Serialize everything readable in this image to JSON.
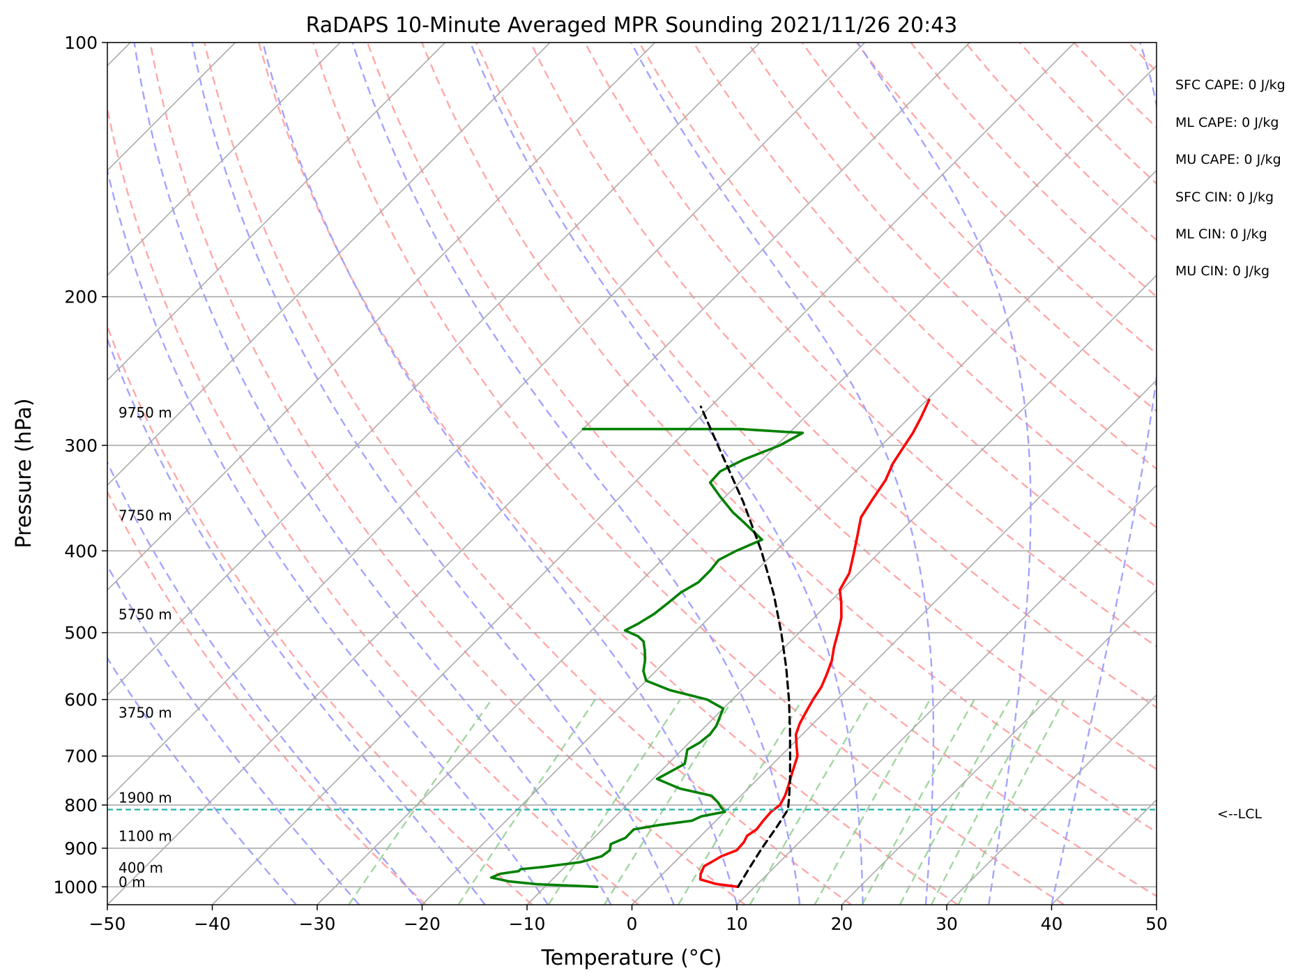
{
  "chart_data": {
    "type": "line",
    "subtype": "skew-t log-p",
    "title": "RaDAPS 10-Minute Averaged MPR Sounding 2021/11/26 20:43",
    "xlabel": "Temperature (°C)",
    "ylabel": "Pressure (hPa)",
    "xlim": [
      -50,
      50
    ],
    "ylim": [
      1050,
      100
    ],
    "yscale": "log",
    "x_ticks": [
      -50,
      -40,
      -30,
      -20,
      -10,
      0,
      10,
      20,
      30,
      40,
      50
    ],
    "x_tick_labels": [
      "−50",
      "−40",
      "−30",
      "−20",
      "−10",
      "0",
      "10",
      "20",
      "30",
      "40",
      "50"
    ],
    "y_ticks": [
      100,
      200,
      300,
      400,
      500,
      600,
      700,
      800,
      900,
      1000
    ],
    "y_tick_labels": [
      "100",
      "200",
      "300",
      "400",
      "500",
      "600",
      "700",
      "800",
      "900",
      "1000"
    ],
    "grid": true,
    "series": [
      {
        "role": "temperature",
        "color": "#ff0000",
        "points": [
          [
            1000,
            8.4
          ],
          [
            992,
            6.0
          ],
          [
            980,
            4.1
          ],
          [
            965,
            3.6
          ],
          [
            945,
            3.2
          ],
          [
            935,
            3.5
          ],
          [
            920,
            3.9
          ],
          [
            905,
            4.8
          ],
          [
            885,
            4.7
          ],
          [
            870,
            4.4
          ],
          [
            855,
            4.7
          ],
          [
            835,
            4.5
          ],
          [
            815,
            4.4
          ],
          [
            800,
            4.6
          ],
          [
            780,
            4.2
          ],
          [
            760,
            3.6
          ],
          [
            730,
            2.6
          ],
          [
            700,
            1.6
          ],
          [
            680,
            0.5
          ],
          [
            660,
            -0.6
          ],
          [
            640,
            -1.3
          ],
          [
            620,
            -1.8
          ],
          [
            600,
            -2.3
          ],
          [
            580,
            -2.7
          ],
          [
            560,
            -3.4
          ],
          [
            540,
            -4.2
          ],
          [
            520,
            -5.3
          ],
          [
            500,
            -6.3
          ],
          [
            480,
            -7.4
          ],
          [
            460,
            -8.9
          ],
          [
            445,
            -10.2
          ],
          [
            425,
            -10.9
          ],
          [
            405,
            -12.2
          ],
          [
            385,
            -13.6
          ],
          [
            365,
            -15.1
          ],
          [
            348,
            -15.7
          ],
          [
            330,
            -16.3
          ],
          [
            315,
            -17.2
          ],
          [
            300,
            -17.8
          ],
          [
            290,
            -18.2
          ],
          [
            278,
            -18.9
          ],
          [
            265,
            -19.8
          ]
        ]
      },
      {
        "role": "dewpoint",
        "color": "#008000",
        "points": [
          [
            1000,
            -5.0
          ],
          [
            993,
            -11.0
          ],
          [
            985,
            -14.0
          ],
          [
            975,
            -16.0
          ],
          [
            965,
            -15.5
          ],
          [
            958,
            -14.0
          ],
          [
            953,
            -14.0
          ],
          [
            947,
            -12.0
          ],
          [
            935,
            -9.0
          ],
          [
            920,
            -7.5
          ],
          [
            905,
            -7.3
          ],
          [
            890,
            -7.8
          ],
          [
            875,
            -7.0
          ],
          [
            865,
            -7.0
          ],
          [
            855,
            -7.0
          ],
          [
            845,
            -5.0
          ],
          [
            835,
            -2.3
          ],
          [
            825,
            -1.8
          ],
          [
            815,
            0.0
          ],
          [
            805,
            -0.8
          ],
          [
            795,
            -1.5
          ],
          [
            780,
            -2.8
          ],
          [
            765,
            -6.5
          ],
          [
            745,
            -9.6
          ],
          [
            730,
            -9.0
          ],
          [
            715,
            -8.4
          ],
          [
            700,
            -9.0
          ],
          [
            688,
            -9.5
          ],
          [
            675,
            -9.0
          ],
          [
            660,
            -8.8
          ],
          [
            645,
            -9.0
          ],
          [
            630,
            -9.5
          ],
          [
            615,
            -10.0
          ],
          [
            600,
            -12.4
          ],
          [
            585,
            -16.8
          ],
          [
            570,
            -20.0
          ],
          [
            555,
            -21.2
          ],
          [
            540,
            -22.0
          ],
          [
            525,
            -23.0
          ],
          [
            512,
            -24.0
          ],
          [
            505,
            -25.0
          ],
          [
            497,
            -26.8
          ],
          [
            488,
            -26.2
          ],
          [
            475,
            -25.6
          ],
          [
            460,
            -25.3
          ],
          [
            448,
            -25.1
          ],
          [
            436,
            -24.4
          ],
          [
            422,
            -24.4
          ],
          [
            410,
            -24.6
          ],
          [
            400,
            -23.8
          ],
          [
            388,
            -22.4
          ],
          [
            380,
            -23.9
          ],
          [
            370,
            -25.8
          ],
          [
            360,
            -27.8
          ],
          [
            345,
            -30.5
          ],
          [
            332,
            -32.8
          ],
          [
            322,
            -32.9
          ],
          [
            312,
            -31.8
          ],
          [
            300,
            -29.7
          ],
          [
            290,
            -28.7
          ],
          [
            287,
            -35.0
          ],
          [
            287,
            -50.0
          ]
        ]
      },
      {
        "role": "parcel",
        "color": "#000000",
        "dashed": true,
        "points": [
          [
            1000,
            8.4
          ],
          [
            950,
            7.7
          ],
          [
            900,
            7.0
          ],
          [
            850,
            6.4
          ],
          [
            810,
            5.8
          ],
          [
            780,
            4.6
          ],
          [
            750,
            3.3
          ],
          [
            700,
            0.9
          ],
          [
            650,
            -1.7
          ],
          [
            600,
            -4.6
          ],
          [
            550,
            -7.9
          ],
          [
            500,
            -11.7
          ],
          [
            450,
            -16.1
          ],
          [
            400,
            -21.4
          ],
          [
            350,
            -27.8
          ],
          [
            300,
            -35.6
          ],
          [
            270,
            -40.9
          ]
        ]
      }
    ],
    "lcl_pressure": 810,
    "lcl_label": "<--LCL",
    "height_labels": [
      {
        "text": "9750 m",
        "pressure": 278
      },
      {
        "text": "7750 m",
        "pressure": 368
      },
      {
        "text": "5750 m",
        "pressure": 482
      },
      {
        "text": "3750 m",
        "pressure": 630
      },
      {
        "text": "1900 m",
        "pressure": 795
      },
      {
        "text": "1100 m",
        "pressure": 882
      },
      {
        "text": "400 m",
        "pressure": 962
      },
      {
        "text": "0 m",
        "pressure": 1000
      }
    ],
    "indices": [
      "SFC CAPE: 0 J/kg",
      "ML CAPE: 0 J/kg",
      "MU CAPE: 0 J/kg",
      "SFC CIN: 0 J/kg",
      "ML CIN: 0 J/kg",
      "MU CIN: 0 J/kg"
    ],
    "background_lines": {
      "isotherms_color": "#aaaaaa",
      "dry_adiabats_color": "#ff9999",
      "moist_adiabats_color": "#9999ff",
      "mixing_ratio_color": "#88cc88",
      "lcl_line_color": "#20b2aa"
    }
  }
}
